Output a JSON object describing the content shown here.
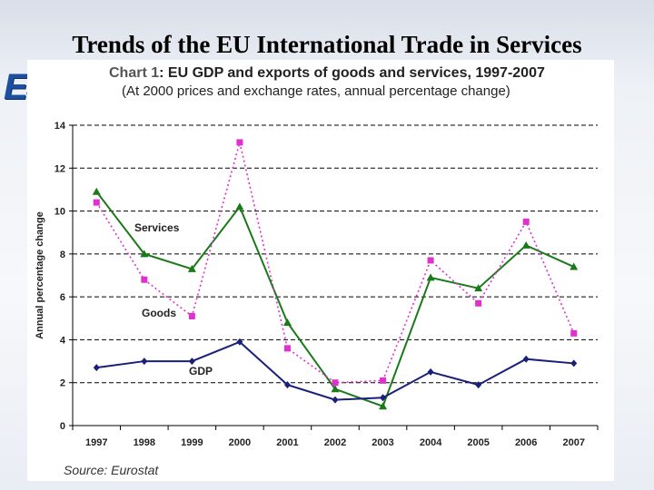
{
  "slide": {
    "title": "Trends of the EU International Trade in Services"
  },
  "logo": {
    "text": "ESF"
  },
  "chart_data": {
    "type": "line",
    "title_prefix": "Chart 1",
    "title_rest": ": EU GDP and exports of goods and services, 1997-2007",
    "subtitle": "(At 2000 prices and exchange rates, annual percentage change)",
    "ylabel": "Annual percentage change",
    "xlabel": "",
    "ylim": [
      0,
      14
    ],
    "yticks": [
      "0",
      "2",
      "4",
      "6",
      "8",
      "10",
      "12",
      "14"
    ],
    "gridlines": "horizontal dashed",
    "categories": [
      "1997",
      "1998",
      "1999",
      "2000",
      "2001",
      "2002",
      "2003",
      "2004",
      "2005",
      "2006",
      "2007"
    ],
    "series": [
      {
        "name": "Services",
        "color": "#1a7a1a",
        "style": "solid",
        "marker": "triangle",
        "values": [
          10.9,
          8.0,
          7.3,
          10.2,
          4.8,
          1.7,
          0.9,
          6.9,
          6.4,
          8.4,
          7.4
        ]
      },
      {
        "name": "Goods",
        "color": "#e030d0",
        "style": "dotted",
        "marker": "square",
        "values": [
          10.4,
          6.8,
          5.1,
          13.2,
          3.6,
          2.0,
          2.1,
          7.7,
          5.7,
          9.5,
          4.3
        ]
      },
      {
        "name": "GDP",
        "color": "#1a1f7a",
        "style": "solid",
        "marker": "diamond",
        "values": [
          2.7,
          3.0,
          3.0,
          3.9,
          1.9,
          1.2,
          1.3,
          2.5,
          1.9,
          3.1,
          2.9
        ]
      }
    ],
    "series_labels": {
      "services": "Services",
      "goods": "Goods",
      "gdp": "GDP"
    },
    "source": "Source: Eurostat"
  }
}
